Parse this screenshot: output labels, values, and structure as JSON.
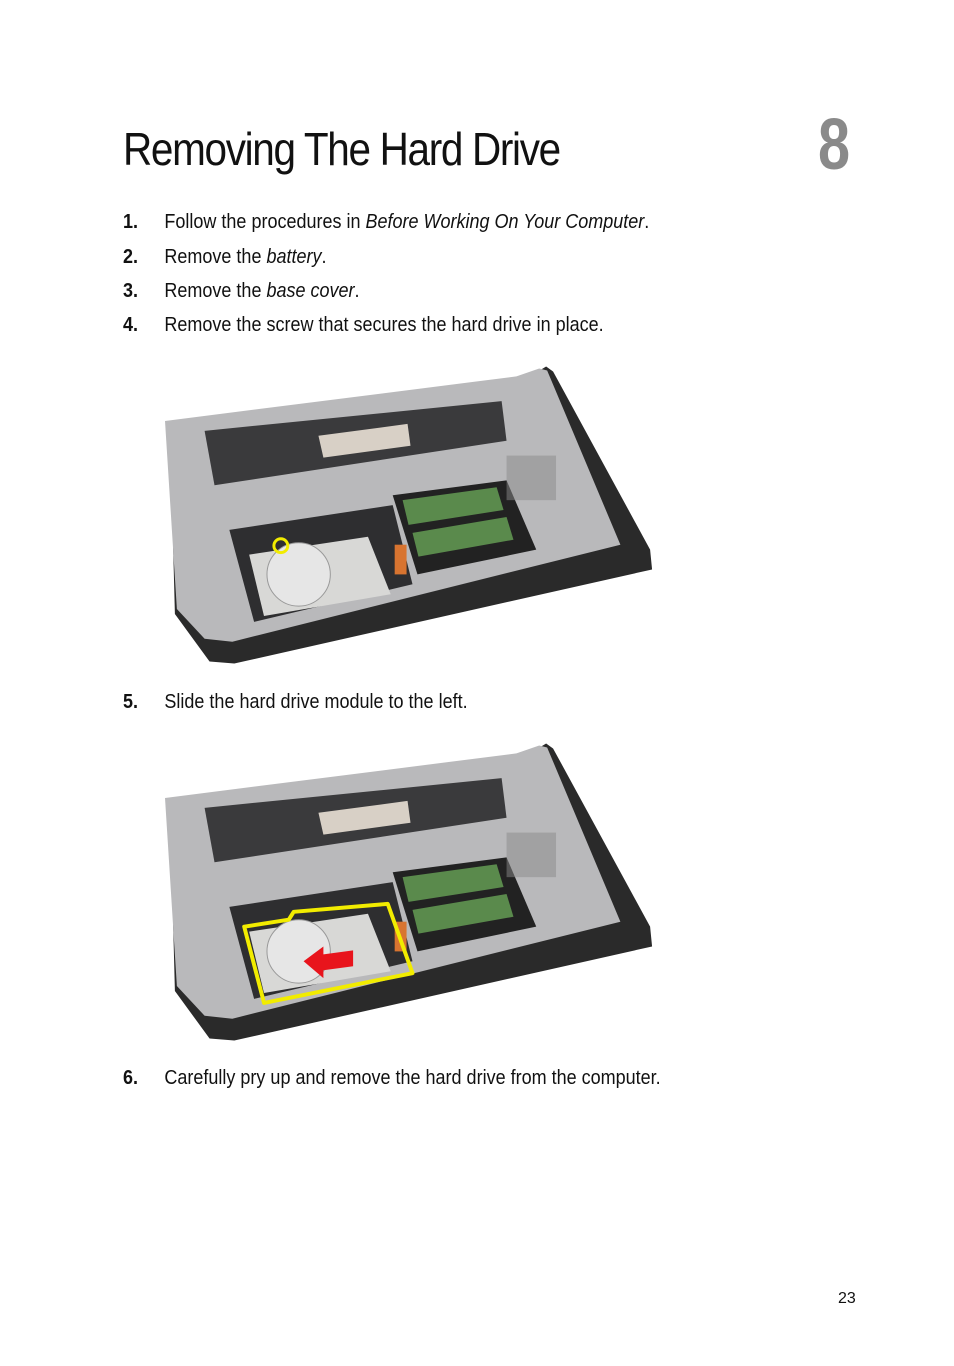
{
  "header": {
    "title": "Removing The Hard Drive",
    "chapter": "8"
  },
  "steps": [
    {
      "number": "1.",
      "parts": [
        {
          "text": "Follow the procedures in ",
          "italic": false
        },
        {
          "text": "Before Working On Your Computer",
          "italic": true
        },
        {
          "text": ".",
          "italic": false
        }
      ]
    },
    {
      "number": "2.",
      "parts": [
        {
          "text": "Remove the ",
          "italic": false
        },
        {
          "text": "battery",
          "italic": true
        },
        {
          "text": ".",
          "italic": false
        }
      ]
    },
    {
      "number": "3.",
      "parts": [
        {
          "text": "Remove the ",
          "italic": false
        },
        {
          "text": "base cover",
          "italic": true
        },
        {
          "text": ".",
          "italic": false
        }
      ]
    },
    {
      "number": "4.",
      "parts": [
        {
          "text": "Remove the screw that secures the hard drive in place.",
          "italic": false
        }
      ]
    },
    {
      "number": "5.",
      "parts": [
        {
          "text": "Slide the hard drive module to the left.",
          "italic": false
        }
      ]
    },
    {
      "number": "6.",
      "parts": [
        {
          "text": "Carefully pry up and remove the hard drive from the computer.",
          "italic": false
        }
      ]
    }
  ],
  "footer": {
    "page_number": "23"
  }
}
